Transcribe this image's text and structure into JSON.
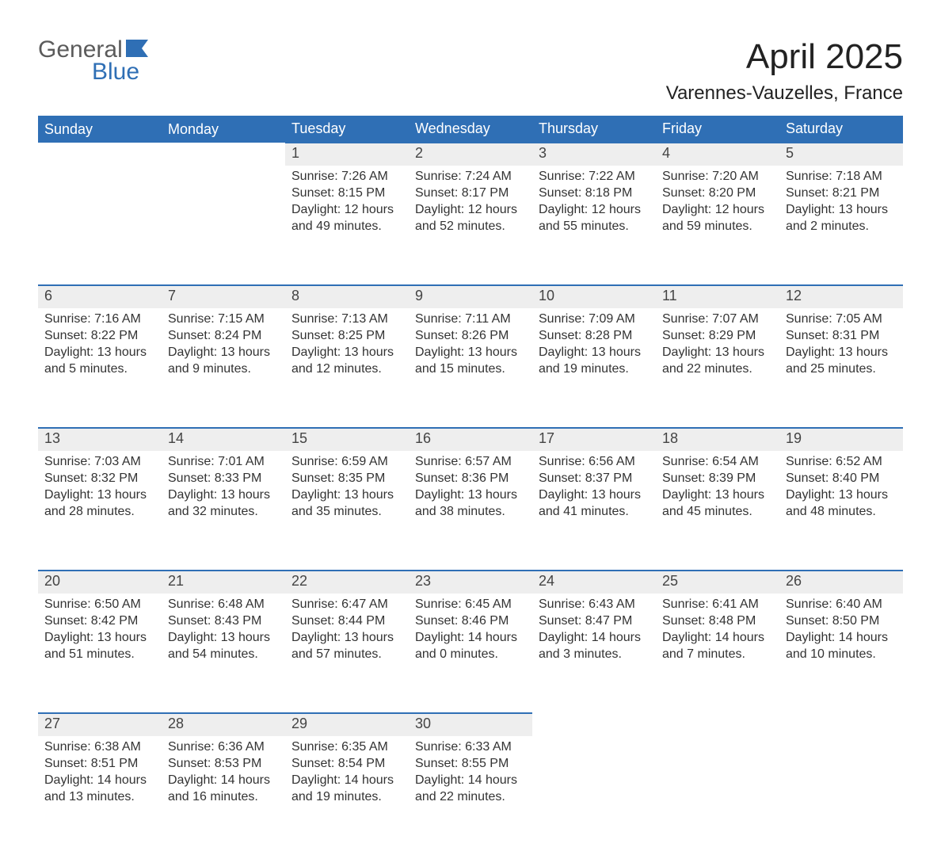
{
  "logo": {
    "text1": "General",
    "text2": "Blue",
    "text_color": "#5b5b5b",
    "accent_color": "#2f6fb5"
  },
  "title": "April 2025",
  "location": "Varennes-Vauzelles, France",
  "colors": {
    "header_bg": "#2f6fb5",
    "header_text": "#ffffff",
    "daynum_bg": "#eeeeee",
    "daynum_border": "#2f6fb5",
    "body_text": "#333333",
    "page_bg": "#ffffff"
  },
  "weekdays": [
    "Sunday",
    "Monday",
    "Tuesday",
    "Wednesday",
    "Thursday",
    "Friday",
    "Saturday"
  ],
  "weeks": [
    {
      "days": [
        {
          "num": "",
          "sunrise": "",
          "sunset": "",
          "daylight1": "",
          "daylight2": "",
          "empty": true
        },
        {
          "num": "",
          "sunrise": "",
          "sunset": "",
          "daylight1": "",
          "daylight2": "",
          "empty": true
        },
        {
          "num": "1",
          "sunrise": "Sunrise: 7:26 AM",
          "sunset": "Sunset: 8:15 PM",
          "daylight1": "Daylight: 12 hours",
          "daylight2": "and 49 minutes."
        },
        {
          "num": "2",
          "sunrise": "Sunrise: 7:24 AM",
          "sunset": "Sunset: 8:17 PM",
          "daylight1": "Daylight: 12 hours",
          "daylight2": "and 52 minutes."
        },
        {
          "num": "3",
          "sunrise": "Sunrise: 7:22 AM",
          "sunset": "Sunset: 8:18 PM",
          "daylight1": "Daylight: 12 hours",
          "daylight2": "and 55 minutes."
        },
        {
          "num": "4",
          "sunrise": "Sunrise: 7:20 AM",
          "sunset": "Sunset: 8:20 PM",
          "daylight1": "Daylight: 12 hours",
          "daylight2": "and 59 minutes."
        },
        {
          "num": "5",
          "sunrise": "Sunrise: 7:18 AM",
          "sunset": "Sunset: 8:21 PM",
          "daylight1": "Daylight: 13 hours",
          "daylight2": "and 2 minutes."
        }
      ]
    },
    {
      "days": [
        {
          "num": "6",
          "sunrise": "Sunrise: 7:16 AM",
          "sunset": "Sunset: 8:22 PM",
          "daylight1": "Daylight: 13 hours",
          "daylight2": "and 5 minutes."
        },
        {
          "num": "7",
          "sunrise": "Sunrise: 7:15 AM",
          "sunset": "Sunset: 8:24 PM",
          "daylight1": "Daylight: 13 hours",
          "daylight2": "and 9 minutes."
        },
        {
          "num": "8",
          "sunrise": "Sunrise: 7:13 AM",
          "sunset": "Sunset: 8:25 PM",
          "daylight1": "Daylight: 13 hours",
          "daylight2": "and 12 minutes."
        },
        {
          "num": "9",
          "sunrise": "Sunrise: 7:11 AM",
          "sunset": "Sunset: 8:26 PM",
          "daylight1": "Daylight: 13 hours",
          "daylight2": "and 15 minutes."
        },
        {
          "num": "10",
          "sunrise": "Sunrise: 7:09 AM",
          "sunset": "Sunset: 8:28 PM",
          "daylight1": "Daylight: 13 hours",
          "daylight2": "and 19 minutes."
        },
        {
          "num": "11",
          "sunrise": "Sunrise: 7:07 AM",
          "sunset": "Sunset: 8:29 PM",
          "daylight1": "Daylight: 13 hours",
          "daylight2": "and 22 minutes."
        },
        {
          "num": "12",
          "sunrise": "Sunrise: 7:05 AM",
          "sunset": "Sunset: 8:31 PM",
          "daylight1": "Daylight: 13 hours",
          "daylight2": "and 25 minutes."
        }
      ]
    },
    {
      "days": [
        {
          "num": "13",
          "sunrise": "Sunrise: 7:03 AM",
          "sunset": "Sunset: 8:32 PM",
          "daylight1": "Daylight: 13 hours",
          "daylight2": "and 28 minutes."
        },
        {
          "num": "14",
          "sunrise": "Sunrise: 7:01 AM",
          "sunset": "Sunset: 8:33 PM",
          "daylight1": "Daylight: 13 hours",
          "daylight2": "and 32 minutes."
        },
        {
          "num": "15",
          "sunrise": "Sunrise: 6:59 AM",
          "sunset": "Sunset: 8:35 PM",
          "daylight1": "Daylight: 13 hours",
          "daylight2": "and 35 minutes."
        },
        {
          "num": "16",
          "sunrise": "Sunrise: 6:57 AM",
          "sunset": "Sunset: 8:36 PM",
          "daylight1": "Daylight: 13 hours",
          "daylight2": "and 38 minutes."
        },
        {
          "num": "17",
          "sunrise": "Sunrise: 6:56 AM",
          "sunset": "Sunset: 8:37 PM",
          "daylight1": "Daylight: 13 hours",
          "daylight2": "and 41 minutes."
        },
        {
          "num": "18",
          "sunrise": "Sunrise: 6:54 AM",
          "sunset": "Sunset: 8:39 PM",
          "daylight1": "Daylight: 13 hours",
          "daylight2": "and 45 minutes."
        },
        {
          "num": "19",
          "sunrise": "Sunrise: 6:52 AM",
          "sunset": "Sunset: 8:40 PM",
          "daylight1": "Daylight: 13 hours",
          "daylight2": "and 48 minutes."
        }
      ]
    },
    {
      "days": [
        {
          "num": "20",
          "sunrise": "Sunrise: 6:50 AM",
          "sunset": "Sunset: 8:42 PM",
          "daylight1": "Daylight: 13 hours",
          "daylight2": "and 51 minutes."
        },
        {
          "num": "21",
          "sunrise": "Sunrise: 6:48 AM",
          "sunset": "Sunset: 8:43 PM",
          "daylight1": "Daylight: 13 hours",
          "daylight2": "and 54 minutes."
        },
        {
          "num": "22",
          "sunrise": "Sunrise: 6:47 AM",
          "sunset": "Sunset: 8:44 PM",
          "daylight1": "Daylight: 13 hours",
          "daylight2": "and 57 minutes."
        },
        {
          "num": "23",
          "sunrise": "Sunrise: 6:45 AM",
          "sunset": "Sunset: 8:46 PM",
          "daylight1": "Daylight: 14 hours",
          "daylight2": "and 0 minutes."
        },
        {
          "num": "24",
          "sunrise": "Sunrise: 6:43 AM",
          "sunset": "Sunset: 8:47 PM",
          "daylight1": "Daylight: 14 hours",
          "daylight2": "and 3 minutes."
        },
        {
          "num": "25",
          "sunrise": "Sunrise: 6:41 AM",
          "sunset": "Sunset: 8:48 PM",
          "daylight1": "Daylight: 14 hours",
          "daylight2": "and 7 minutes."
        },
        {
          "num": "26",
          "sunrise": "Sunrise: 6:40 AM",
          "sunset": "Sunset: 8:50 PM",
          "daylight1": "Daylight: 14 hours",
          "daylight2": "and 10 minutes."
        }
      ]
    },
    {
      "days": [
        {
          "num": "27",
          "sunrise": "Sunrise: 6:38 AM",
          "sunset": "Sunset: 8:51 PM",
          "daylight1": "Daylight: 14 hours",
          "daylight2": "and 13 minutes."
        },
        {
          "num": "28",
          "sunrise": "Sunrise: 6:36 AM",
          "sunset": "Sunset: 8:53 PM",
          "daylight1": "Daylight: 14 hours",
          "daylight2": "and 16 minutes."
        },
        {
          "num": "29",
          "sunrise": "Sunrise: 6:35 AM",
          "sunset": "Sunset: 8:54 PM",
          "daylight1": "Daylight: 14 hours",
          "daylight2": "and 19 minutes."
        },
        {
          "num": "30",
          "sunrise": "Sunrise: 6:33 AM",
          "sunset": "Sunset: 8:55 PM",
          "daylight1": "Daylight: 14 hours",
          "daylight2": "and 22 minutes."
        },
        {
          "num": "",
          "sunrise": "",
          "sunset": "",
          "daylight1": "",
          "daylight2": "",
          "empty": true
        },
        {
          "num": "",
          "sunrise": "",
          "sunset": "",
          "daylight1": "",
          "daylight2": "",
          "empty": true
        },
        {
          "num": "",
          "sunrise": "",
          "sunset": "",
          "daylight1": "",
          "daylight2": "",
          "empty": true
        }
      ]
    }
  ]
}
